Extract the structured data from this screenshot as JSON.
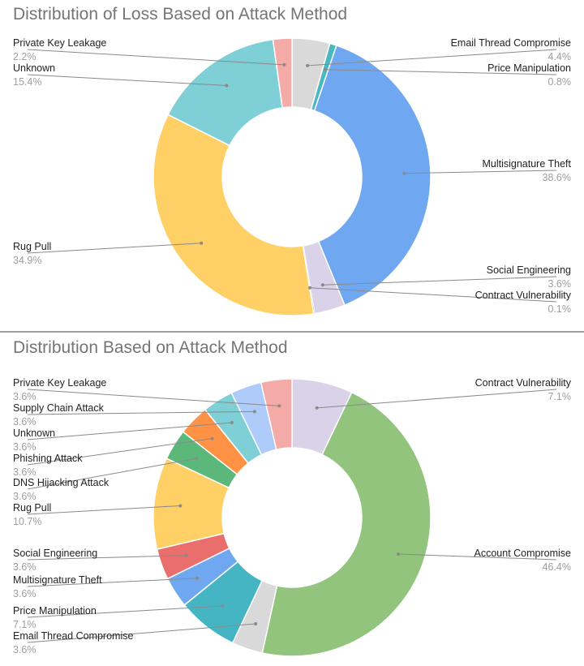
{
  "chart_data": [
    {
      "type": "pie",
      "donut": true,
      "title": "Distribution of Loss Based on Attack Method",
      "slices": [
        {
          "label": "Email Thread Compromise",
          "value": 4.4,
          "display": "4.4%",
          "color": "#d9d9d9",
          "side": "right"
        },
        {
          "label": "Price Manipulation",
          "value": 0.8,
          "display": "0.8%",
          "color": "#4ab8c1",
          "side": "right"
        },
        {
          "label": "Multisignature Theft",
          "value": 38.6,
          "display": "38.6%",
          "color": "#6fa8f0",
          "side": "right"
        },
        {
          "label": "Social Engineering",
          "value": 3.6,
          "display": "3.6%",
          "color": "#d9d2e9",
          "side": "right"
        },
        {
          "label": "Contract Vulnerability",
          "value": 0.1,
          "display": "0.1%",
          "color": "#93c47d",
          "side": "right"
        },
        {
          "label": "Rug Pull",
          "value": 34.9,
          "display": "34.9%",
          "color": "#ffd066",
          "side": "left"
        },
        {
          "label": "Unknown",
          "value": 15.4,
          "display": "15.4%",
          "color": "#7fcfd6",
          "side": "left"
        },
        {
          "label": "Private Key Leakage",
          "value": 2.2,
          "display": "2.2%",
          "color": "#f4aaa6",
          "side": "left"
        }
      ]
    },
    {
      "type": "pie",
      "donut": true,
      "title": "Distribution Based on Attack Method",
      "slices": [
        {
          "label": "Contract Vulnerability",
          "value": 7.1,
          "display": "7.1%",
          "color": "#d9d2e9",
          "side": "right"
        },
        {
          "label": "Account Compromise",
          "value": 46.4,
          "display": "46.4%",
          "color": "#93c47d",
          "side": "right"
        },
        {
          "label": "Email Thread Compromise",
          "value": 3.6,
          "display": "3.6%",
          "color": "#d9d9d9",
          "side": "left"
        },
        {
          "label": "Price Manipulation",
          "value": 7.1,
          "display": "7.1%",
          "color": "#45b5c4",
          "side": "left"
        },
        {
          "label": "Multisignature Theft",
          "value": 3.6,
          "display": "3.6%",
          "color": "#6fa8f0",
          "side": "left"
        },
        {
          "label": "Social Engineering",
          "value": 3.6,
          "display": "3.6%",
          "color": "#ea6e6b",
          "side": "left"
        },
        {
          "label": "Rug Pull",
          "value": 10.7,
          "display": "10.7%",
          "color": "#ffd066",
          "side": "left"
        },
        {
          "label": "DNS Hijacking Attack",
          "value": 3.6,
          "display": "3.6%",
          "color": "#5cb87a",
          "side": "left"
        },
        {
          "label": "Phishing Attack",
          "value": 3.6,
          "display": "3.6%",
          "color": "#ff9245",
          "side": "left"
        },
        {
          "label": "Unknown",
          "value": 3.6,
          "display": "3.6%",
          "color": "#7fcfd6",
          "side": "left"
        },
        {
          "label": "Supply Chain Attack",
          "value": 3.6,
          "display": "3.6%",
          "color": "#aecbfa",
          "side": "left"
        },
        {
          "label": "Private Key Leakage",
          "value": 3.6,
          "display": "3.6%",
          "color": "#f4aaa6",
          "side": "left"
        }
      ]
    }
  ]
}
